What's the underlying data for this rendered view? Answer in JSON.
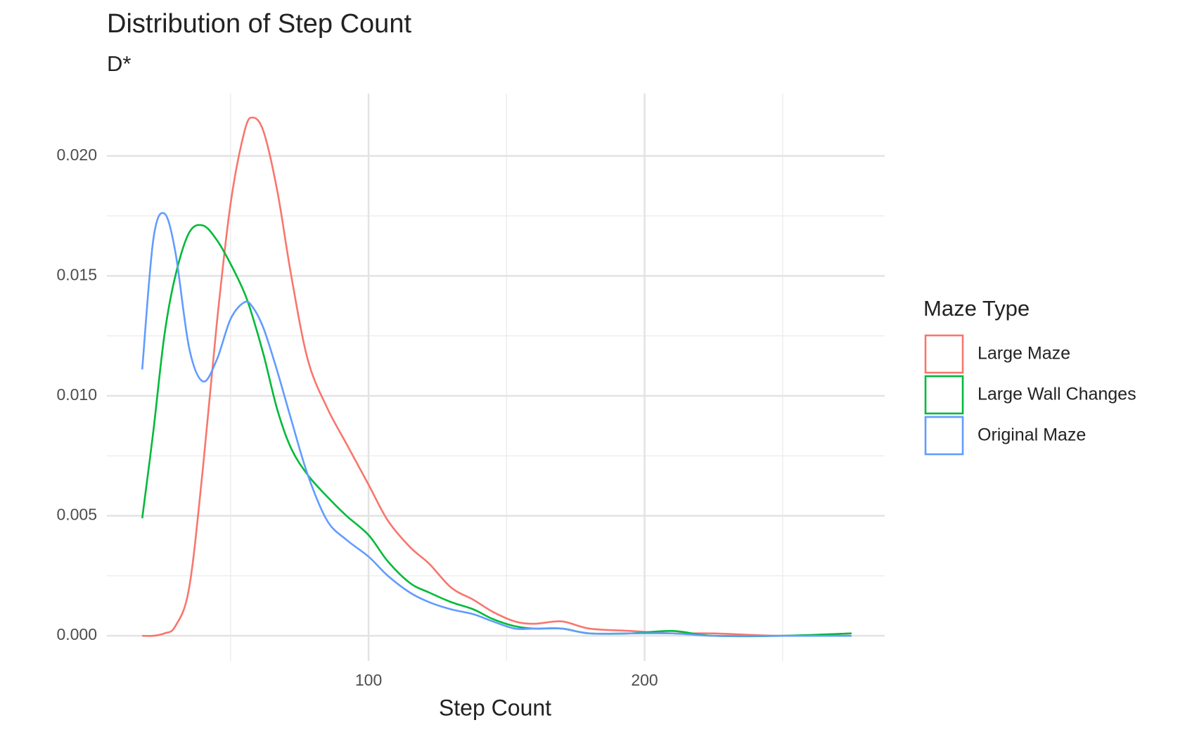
{
  "chart_data": {
    "type": "line",
    "title": "Distribution of Step Count",
    "subtitle": "D*",
    "x_label": "Step Count",
    "legend_title": "Maze Type",
    "legend_position": "right",
    "grid": true,
    "xlim": [
      5.2,
      287
    ],
    "xticks": [
      100,
      200
    ],
    "x_minor_ticks": [
      50,
      150,
      250
    ],
    "ylim": [
      -0.00105,
      0.0226
    ],
    "yticks": [
      {
        "value": 0,
        "label": "0.000"
      },
      {
        "value": 0.005,
        "label": "0.005"
      },
      {
        "value": 0.01,
        "label": "0.010"
      },
      {
        "value": 0.015,
        "label": "0.015"
      },
      {
        "value": 0.02,
        "label": "0.020"
      }
    ],
    "y_minor_ticks": [
      0.0025,
      0.0075,
      0.0125,
      0.0175
    ],
    "x": [
      18,
      22,
      26,
      30,
      35,
      40,
      45,
      50,
      55,
      58,
      62,
      67,
      72,
      78,
      85,
      92,
      100,
      107,
      115,
      122,
      130,
      138,
      145,
      153,
      160,
      170,
      180,
      195,
      210,
      225,
      250,
      275
    ],
    "series": [
      {
        "name": "Large Maze",
        "color": "#f8766d",
        "values": [
          0,
          0,
          0.0001,
          0.0004,
          0.002,
          0.007,
          0.013,
          0.018,
          0.021,
          0.0216,
          0.021,
          0.0185,
          0.015,
          0.0115,
          0.0095,
          0.008,
          0.0063,
          0.0048,
          0.0037,
          0.003,
          0.002,
          0.0015,
          0.001,
          0.0006,
          0.0005,
          0.0006,
          0.0003,
          0.0002,
          0.0001,
          0.0001,
          0,
          0.0001
        ]
      },
      {
        "name": "Large Wall Changes",
        "color": "#00ba38",
        "values": [
          0.0049,
          0.0085,
          0.0125,
          0.015,
          0.0168,
          0.0171,
          0.0165,
          0.0155,
          0.0143,
          0.0133,
          0.0117,
          0.0094,
          0.0078,
          0.0067,
          0.0058,
          0.005,
          0.0042,
          0.0031,
          0.0022,
          0.0018,
          0.0014,
          0.0011,
          0.0007,
          0.0004,
          0.0003,
          0.0003,
          0.0001,
          0.0001,
          0.0002,
          0,
          0,
          0.0001
        ]
      },
      {
        "name": "Original Maze",
        "color": "#619cff",
        "values": [
          0.0111,
          0.0165,
          0.0176,
          0.016,
          0.012,
          0.0106,
          0.0115,
          0.0132,
          0.0139,
          0.0137,
          0.0128,
          0.011,
          0.009,
          0.0067,
          0.0048,
          0.004,
          0.0033,
          0.0025,
          0.0018,
          0.0014,
          0.0011,
          0.0009,
          0.0006,
          0.0003,
          0.0003,
          0.0003,
          0.0001,
          0.0001,
          0.0001,
          0,
          0,
          0
        ]
      }
    ]
  }
}
